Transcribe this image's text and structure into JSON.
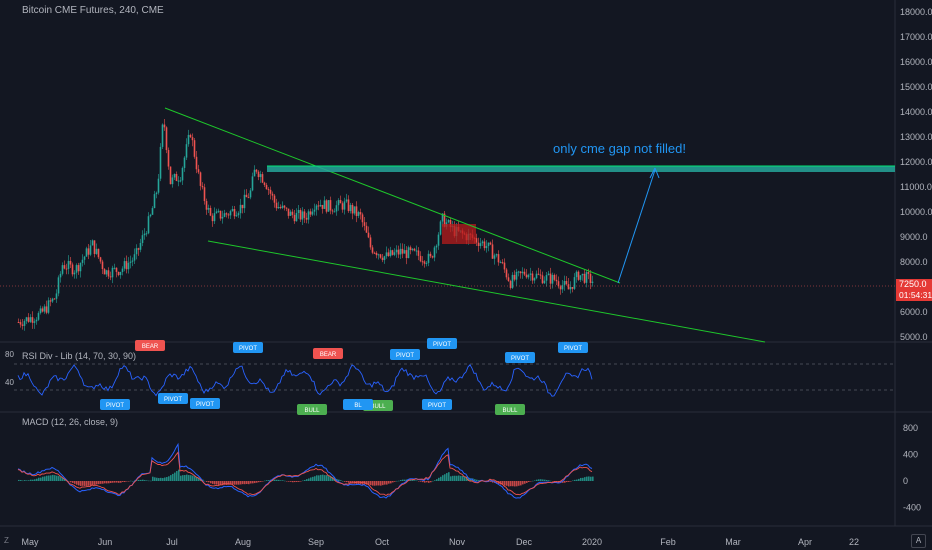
{
  "header": {
    "title": "Bitcoin CME Futures, 240, CME",
    "annotation": "only cme gap not filled!",
    "last_price": "7250.0",
    "countdown": "01:54:31"
  },
  "colors": {
    "background": "#131722",
    "up": "#26a69a",
    "down": "#ef5350",
    "wedge": "#1ec72b",
    "arrow": "#2196f3",
    "gap_box": "#26a69a",
    "rsi_line": "#2962ff",
    "macd_line": "#2962ff",
    "signal_line": "#ef5350"
  },
  "axes": {
    "price_ticks": [
      "18000.0",
      "17000.0",
      "16000.0",
      "15000.0",
      "14000.0",
      "13000.0",
      "12000.0",
      "11000.0",
      "10000.0",
      "9000.0",
      "8000.0",
      "6000.0",
      "5000.0"
    ],
    "rsi_ticks": [
      "80",
      "40"
    ],
    "macd_ticks": [
      "800",
      "400",
      "0",
      "-400"
    ],
    "time_ticks": [
      "May",
      "Jun",
      "Jul",
      "Aug",
      "Sep",
      "Oct",
      "Nov",
      "Dec",
      "2020",
      "Feb",
      "Mar",
      "Apr",
      "22"
    ]
  },
  "indicators": {
    "rsi_title": "RSI Div - Lib (14, 70, 30, 90)",
    "macd_title": "MACD (12, 26, close, 9)",
    "labels": [
      "PIVOT",
      "BEAR",
      "BULL",
      "BL"
    ]
  },
  "buttons": {
    "z": "Z",
    "a": "A"
  },
  "chart_data": {
    "type": "line",
    "title": "Bitcoin CME Futures, 240, CME",
    "ylim": [
      5000,
      18000
    ],
    "x": [
      "May",
      "Jun",
      "Jul",
      "Aug",
      "Sep",
      "Oct",
      "Nov",
      "Dec",
      "2020"
    ],
    "series": [
      {
        "name": "Bitcoin CME Futures",
        "values": [
          5600,
          8200,
          12000,
          10500,
          10000,
          8200,
          9300,
          7500,
          7250
        ]
      }
    ],
    "last_price": 7250.0,
    "gap_zone": [
      11700,
      11900
    ]
  }
}
